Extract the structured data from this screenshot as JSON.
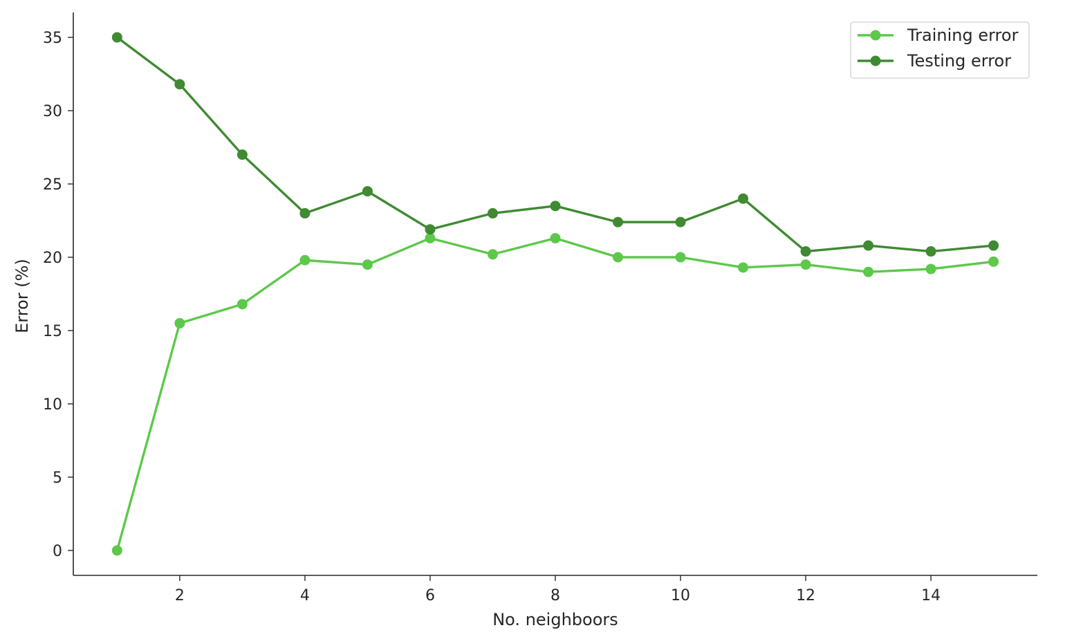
{
  "chart_data": {
    "type": "line",
    "title": "",
    "xlabel": "No. neighboors",
    "ylabel": "Error (%)",
    "xlim": [
      0.3,
      15.7
    ],
    "ylim": [
      -1.7,
      36.7
    ],
    "xticks": [
      2,
      4,
      6,
      8,
      10,
      12,
      14
    ],
    "yticks": [
      0,
      5,
      10,
      15,
      20,
      25,
      30,
      35
    ],
    "grid": false,
    "legend_position": "top-right",
    "x": [
      1,
      2,
      3,
      4,
      5,
      6,
      7,
      8,
      9,
      10,
      11,
      12,
      13,
      14,
      15
    ],
    "series": [
      {
        "name": "Training error",
        "color": "#5dc84b",
        "values": [
          0.0,
          15.5,
          16.8,
          19.8,
          19.5,
          21.3,
          20.2,
          21.3,
          20.0,
          20.0,
          19.3,
          19.5,
          19.0,
          19.2,
          19.7
        ]
      },
      {
        "name": "Testing error",
        "color": "#3f8a32",
        "values": [
          35.0,
          31.8,
          27.0,
          23.0,
          24.5,
          21.9,
          23.0,
          23.5,
          22.4,
          22.4,
          24.0,
          20.4,
          20.8,
          20.4,
          20.8
        ]
      }
    ]
  }
}
